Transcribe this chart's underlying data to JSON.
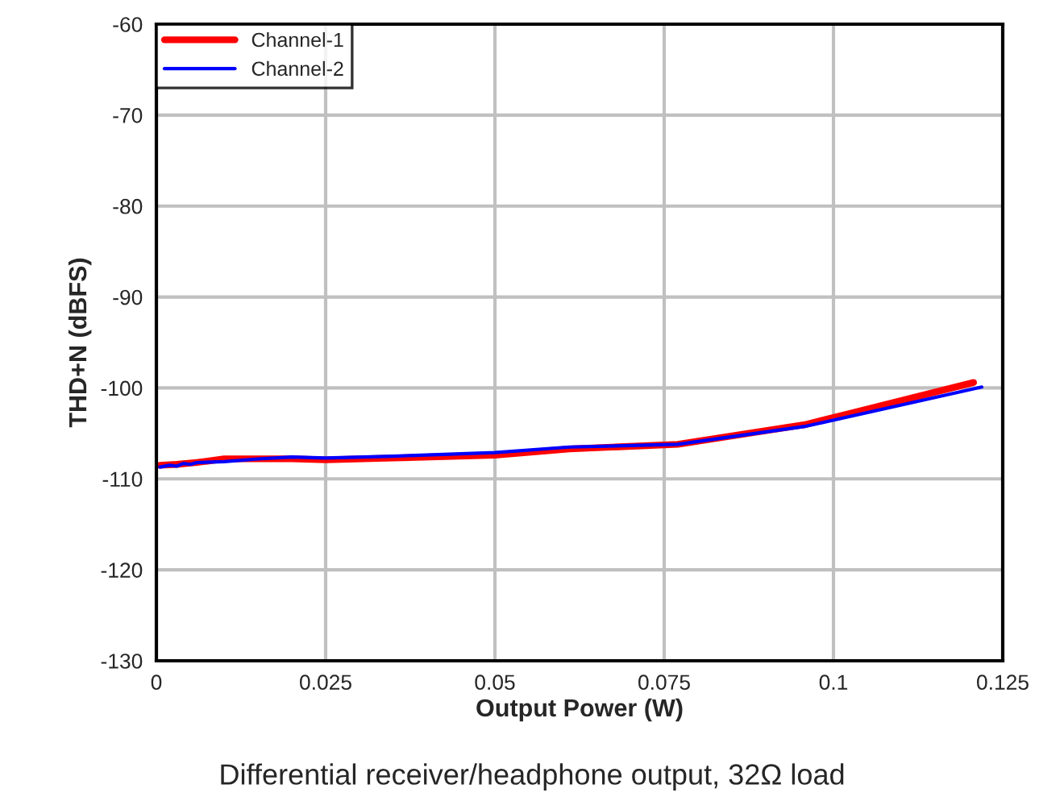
{
  "chart_data": {
    "type": "line",
    "xlabel": "Output Power (W)",
    "ylabel": "THD+N (dBFS)",
    "annotations": [
      "Differential receiver/headphone output, 32Ω load"
    ],
    "xlim": [
      0,
      0.125
    ],
    "xticks": [
      0,
      0.025,
      0.05,
      0.075,
      0.1,
      0.125
    ],
    "ylim": [
      -130,
      -60
    ],
    "yticks": [
      -130,
      -120,
      -110,
      -100,
      -90,
      -80,
      -70,
      -60
    ],
    "grid": true,
    "legend": "top left",
    "marker": "none",
    "line_style": "solid",
    "series": [
      {
        "name": "Channel-1",
        "color": "#ff0000",
        "x": [
          0.0005,
          0.003,
          0.006,
          0.01,
          0.015,
          0.02,
          0.025,
          0.035,
          0.05,
          0.061,
          0.077,
          0.096,
          0.1207
        ],
        "values": [
          -108.5,
          -108.4,
          -108.2,
          -107.8,
          -107.8,
          -107.8,
          -107.9,
          -107.7,
          -107.4,
          -106.7,
          -106.2,
          -104.0,
          -99.4
        ]
      },
      {
        "name": "Channel-2",
        "color": "#0000ff",
        "x": [
          0.0005,
          0.002,
          0.003,
          0.004,
          0.005,
          0.006,
          0.01,
          0.015,
          0.02,
          0.025,
          0.035,
          0.05,
          0.061,
          0.077,
          0.096,
          0.1219
        ],
        "values": [
          -108.7,
          -108.5,
          -108.6,
          -108.3,
          -108.4,
          -108.2,
          -108.1,
          -107.8,
          -107.6,
          -107.7,
          -107.5,
          -107.1,
          -106.5,
          -106.2,
          -104.2,
          -99.9
        ]
      }
    ]
  }
}
